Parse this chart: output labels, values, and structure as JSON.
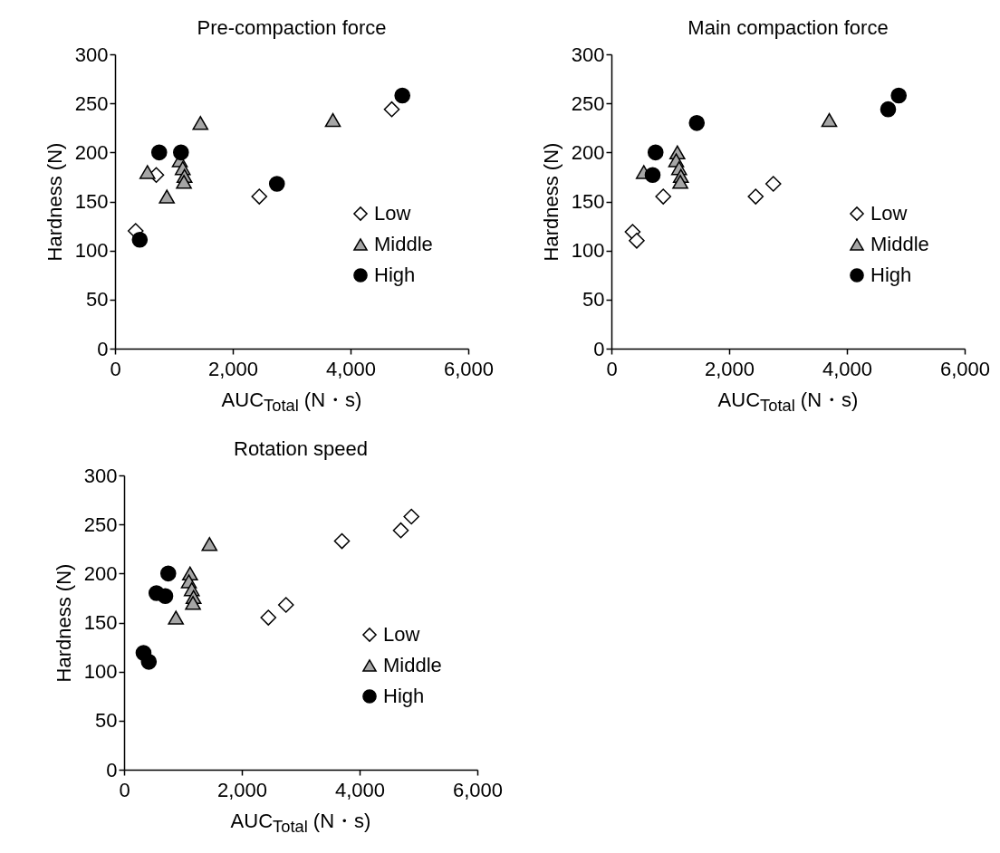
{
  "chart_data": [
    {
      "type": "scatter",
      "title": "Pre-compaction force",
      "xlabel": "AUC$_{Total}$ (N・s)",
      "ylabel": "Hardness (N)",
      "xlim": [
        0,
        6000
      ],
      "xticks": [
        {
          "value": 0,
          "label": "0"
        },
        {
          "value": 2000,
          "label": "2,000"
        },
        {
          "value": 4000,
          "label": "4,000"
        },
        {
          "value": 6000,
          "label": "6,000"
        }
      ],
      "ylim": [
        0,
        300
      ],
      "yticks": [
        0,
        50,
        100,
        150,
        200,
        250,
        300
      ],
      "legend": "right",
      "series": [
        {
          "name": "Low",
          "color": "#ffffff",
          "marker": "diamond",
          "x": [
            350,
            700,
            2450,
            4700
          ],
          "values": [
            120,
            177,
            155,
            244
          ]
        },
        {
          "name": "Middle",
          "color": "#a6a6a6",
          "marker": "triangle",
          "x": [
            550,
            880,
            1450,
            3700,
            1100,
            1150,
            1180,
            1170
          ],
          "values": [
            180,
            155,
            230,
            233,
            192,
            184,
            176,
            170
          ]
        },
        {
          "name": "High",
          "color": "#000000",
          "marker": "circle",
          "x": [
            420,
            750,
            1120,
            2750,
            4880
          ],
          "values": [
            111,
            200,
            200,
            168,
            258
          ]
        }
      ]
    },
    {
      "type": "scatter",
      "title": "Main compaction force",
      "xlabel": "AUC$_{Total}$ (N・s)",
      "ylabel": "Hardness (N)",
      "xlim": [
        0,
        6000
      ],
      "xticks": [
        {
          "value": 0,
          "label": "0"
        },
        {
          "value": 2000,
          "label": "2,000"
        },
        {
          "value": 4000,
          "label": "4,000"
        },
        {
          "value": 6000,
          "label": "6,000"
        }
      ],
      "ylim": [
        0,
        300
      ],
      "yticks": [
        0,
        50,
        100,
        150,
        200,
        250,
        300
      ],
      "legend": "right",
      "series": [
        {
          "name": "Low",
          "color": "#ffffff",
          "marker": "diamond",
          "x": [
            360,
            430,
            880,
            2450,
            2750
          ],
          "values": [
            119,
            110,
            155,
            155,
            168
          ]
        },
        {
          "name": "Middle",
          "color": "#a6a6a6",
          "marker": "triangle",
          "x": [
            550,
            3700,
            1120,
            1100,
            1150,
            1180,
            1170
          ],
          "values": [
            180,
            233,
            200,
            192,
            184,
            176,
            170
          ]
        },
        {
          "name": "High",
          "color": "#000000",
          "marker": "circle",
          "x": [
            700,
            750,
            1450,
            4700,
            4880
          ],
          "values": [
            177,
            200,
            230,
            244,
            258
          ]
        }
      ]
    },
    {
      "type": "scatter",
      "title": "Rotation speed",
      "xlabel": "AUC$_{Total}$ (N・s)",
      "ylabel": "Hardness (N)",
      "xlim": [
        0,
        6000
      ],
      "xticks": [
        {
          "value": 0,
          "label": "0"
        },
        {
          "value": 2000,
          "label": "2,000"
        },
        {
          "value": 4000,
          "label": "4,000"
        },
        {
          "value": 6000,
          "label": "6,000"
        }
      ],
      "ylim": [
        0,
        300
      ],
      "yticks": [
        0,
        50,
        100,
        150,
        200,
        250,
        300
      ],
      "legend": "right",
      "series": [
        {
          "name": "Low",
          "color": "#ffffff",
          "marker": "diamond",
          "x": [
            2450,
            2750,
            3700,
            4700,
            4880
          ],
          "values": [
            155,
            168,
            233,
            244,
            258
          ]
        },
        {
          "name": "Middle",
          "color": "#a6a6a6",
          "marker": "triangle",
          "x": [
            880,
            1450,
            1120,
            1100,
            1150,
            1180,
            1170
          ],
          "values": [
            155,
            230,
            200,
            192,
            184,
            176,
            170
          ]
        },
        {
          "name": "High",
          "color": "#000000",
          "marker": "circle",
          "x": [
            330,
            420,
            700,
            550,
            750
          ],
          "values": [
            119,
            110,
            177,
            180,
            200
          ]
        }
      ]
    }
  ]
}
